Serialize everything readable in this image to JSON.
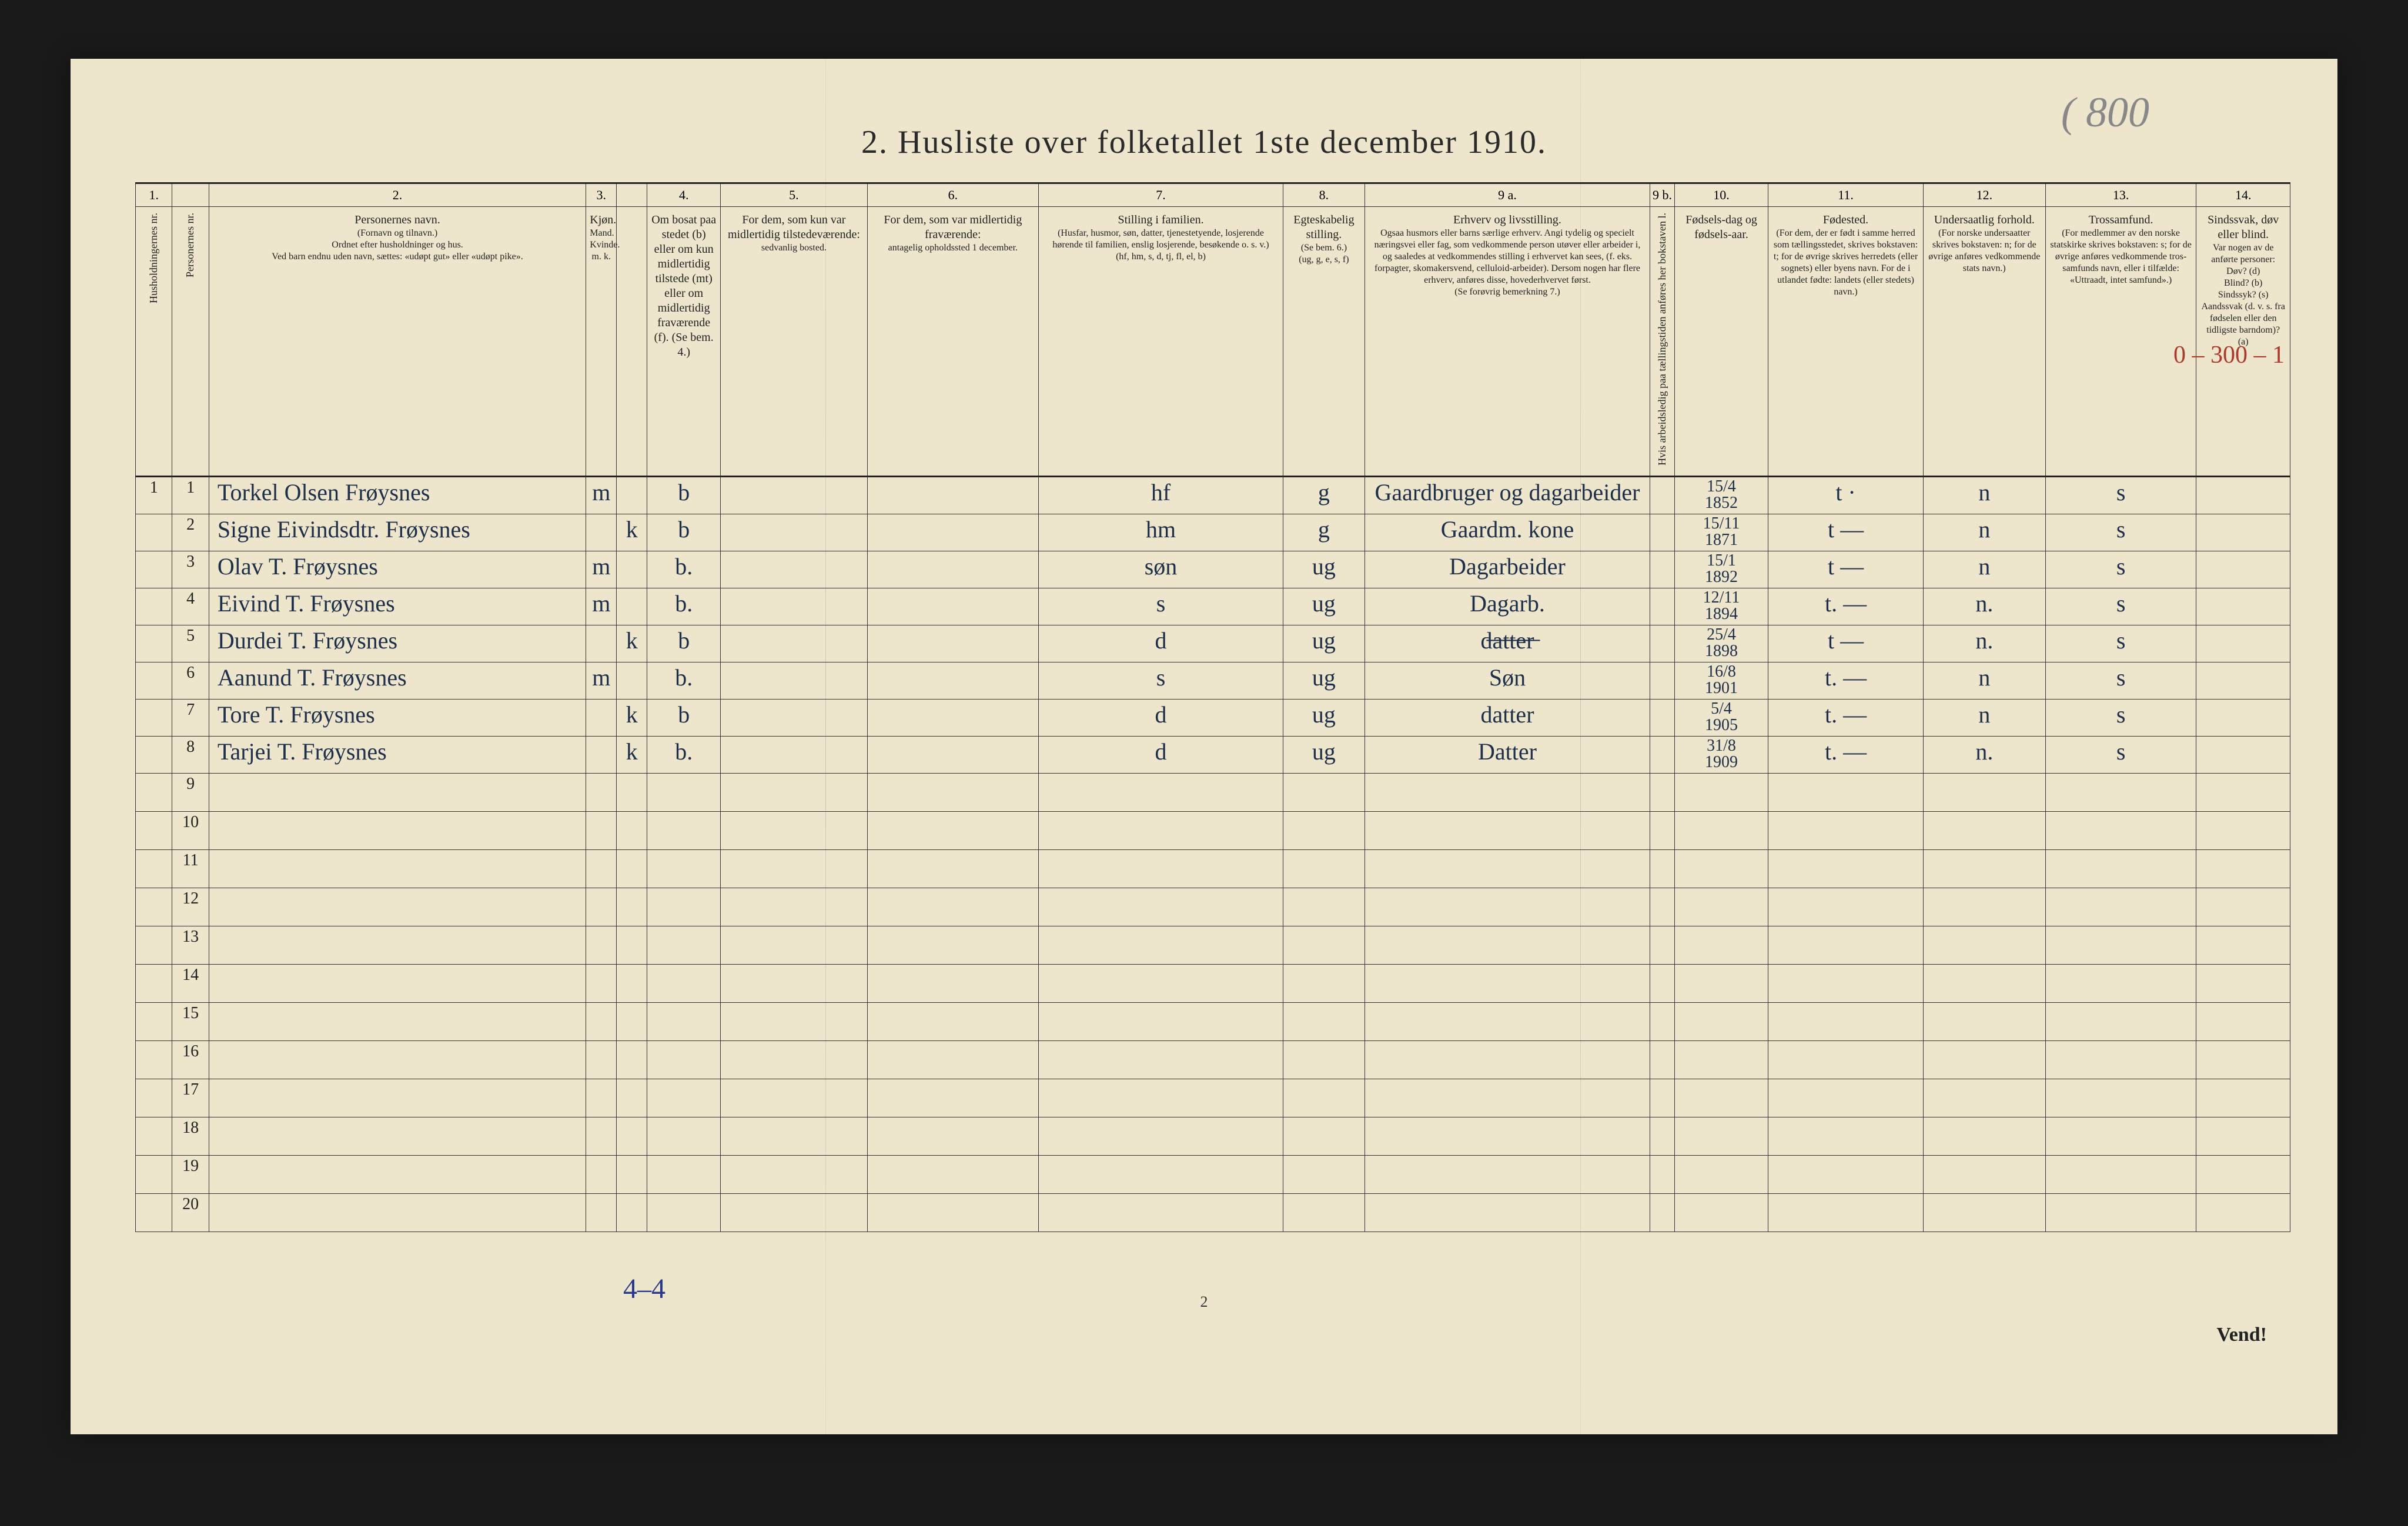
{
  "document": {
    "title": "2.  Husliste over folketallet 1ste december 1910.",
    "pencil_note_top": "( 800",
    "page_number": "2",
    "vend": "Vend!",
    "footer_tally": "4–4",
    "red_side_note": "0 – 300 – 1",
    "background_color": "#ede5cc",
    "ink_color": "#1e2f4a"
  },
  "columns": {
    "widths_pct": [
      1.8,
      1.8,
      18.5,
      1.5,
      1.5,
      3.6,
      7.2,
      8.4,
      12.0,
      4.0,
      14.0,
      1.2,
      4.6,
      7.6,
      6.0,
      7.4,
      4.6
    ],
    "numbers": [
      "1.",
      "",
      "2.",
      "3.",
      "",
      "4.",
      "5.",
      "6.",
      "7.",
      "8.",
      "9 a.",
      "9 b.",
      "10.",
      "11.",
      "12.",
      "13.",
      "14."
    ],
    "headers": [
      "Husholdningernes nr.",
      "Personernes nr.",
      "Personernes navn.\n(Fornavn og tilnavn.)\nOrdnet efter husholdninger og hus.\nVed barn endnu uden navn, sættes: «udøpt gut» eller «udøpt pike».",
      "Kjøn.\nMand. Kvinde.\nm.  k.",
      "",
      "Om bosat paa stedet (b) eller om kun midlertidig tilstede (mt) eller om midlertidig fraværende (f). (Se bem. 4.)",
      "For dem, som kun var midlertidig tilstedeværende:\nsedvanlig bosted.",
      "For dem, som var midlertidig fraværende:\nantagelig opholdssted 1 december.",
      "Stilling i familien.\n(Husfar, husmor, søn, datter, tjenestetyende, losjerende hørende til familien, enslig losjerende, besøkende o. s. v.)\n(hf, hm, s, d, tj, fl, el, b)",
      "Egteskabelig stilling.\n(Se bem. 6.)\n(ug, g, e, s, f)",
      "Erhverv og livsstilling.\nOgsaa husmors eller barns særlige erhverv. Angi tydelig og specielt næringsvei eller fag, som vedkommende person utøver eller arbeider i, og saaledes at vedkommendes stilling i erhvervet kan sees, (f. eks. forpagter, skomakersvend, celluloid-arbeider). Dersom nogen har flere erhverv, anføres disse, hovederhvervet først.\n(Se forøvrig bemerkning 7.)",
      "Hvis arbeidsledig paa tællingstiden anføres her bokstaven l.",
      "Fødsels-dag og fødsels-aar.",
      "Fødested.\n(For dem, der er født i samme herred som tællingsstedet, skrives bokstaven: t; for de øvrige skrives herredets (eller sognets) eller byens navn. For de i utlandet fødte: landets (eller stedets) navn.)",
      "Undersaatlig forhold.\n(For norske undersaatter skrives bokstaven: n; for de øvrige anføres vedkommende stats navn.)",
      "Trossamfund.\n(For medlemmer av den norske statskirke skrives bokstaven: s; for de øvrige anføres vedkommende tros-samfunds navn, eller i tilfælde: «Uttraadt, intet samfund».)",
      "Sindssvak, døv eller blind.\nVar nogen av de anførte personer:\nDøv? (d)\nBlind? (b)\nSindssyk? (s)\nAandssvak (d. v. s. fra fødselen eller den tidligste barndom)? (a)"
    ]
  },
  "rows": [
    {
      "hh": "1",
      "pn": "1",
      "name": "Torkel Olsen Frøysnes",
      "m": "m",
      "k": "",
      "res": "b",
      "away": "",
      "absent": "",
      "fam": "hf",
      "mar": "g",
      "occ": "Gaardbruger og dagarbeider",
      "l": "",
      "dob": "15/4 1852",
      "birthpl": "t  ·",
      "nat": "n",
      "rel": "s",
      "dis": ""
    },
    {
      "hh": "",
      "pn": "2",
      "name": "Signe Eivindsdtr. Frøysnes",
      "m": "",
      "k": "k",
      "res": "b",
      "away": "",
      "absent": "",
      "fam": "hm",
      "mar": "g",
      "occ": "Gaardm. kone",
      "l": "",
      "dob": "15/11 1871",
      "birthpl": "t  —",
      "nat": "n",
      "rel": "s",
      "dis": ""
    },
    {
      "hh": "",
      "pn": "3",
      "name": "Olav T. Frøysnes",
      "m": "m",
      "k": "",
      "res": "b.",
      "away": "",
      "absent": "",
      "fam": "søn",
      "mar": "ug",
      "occ": "Dagarbeider",
      "l": "",
      "dob": "15/1 1892",
      "birthpl": "t  —",
      "nat": "n",
      "rel": "s",
      "dis": ""
    },
    {
      "hh": "",
      "pn": "4",
      "name": "Eivind T. Frøysnes",
      "m": "m",
      "k": "",
      "res": "b.",
      "away": "",
      "absent": "",
      "fam": "s",
      "mar": "ug",
      "occ": "Dagarb.",
      "l": "",
      "dob": "12/11 1894",
      "birthpl": "t.  —",
      "nat": "n.",
      "rel": "s",
      "dis": ""
    },
    {
      "hh": "",
      "pn": "5",
      "name": "Durdei T. Frøysnes",
      "m": "",
      "k": "k",
      "res": "b",
      "away": "",
      "absent": "",
      "fam": "d",
      "mar": "ug",
      "occ": "d̶a̶t̶t̶e̶r̶",
      "l": "",
      "dob": "25/4 1898",
      "birthpl": "t  —",
      "nat": "n.",
      "rel": "s",
      "dis": ""
    },
    {
      "hh": "",
      "pn": "6",
      "name": "Aanund T. Frøysnes",
      "m": "m",
      "k": "",
      "res": "b.",
      "away": "",
      "absent": "",
      "fam": "s",
      "mar": "ug",
      "occ": "Søn",
      "l": "",
      "dob": "16/8 1901",
      "birthpl": "t.  —",
      "nat": "n",
      "rel": "s",
      "dis": ""
    },
    {
      "hh": "",
      "pn": "7",
      "name": "Tore T. Frøysnes",
      "m": "",
      "k": "k",
      "res": "b",
      "away": "",
      "absent": "",
      "fam": "d",
      "mar": "ug",
      "occ": "datter",
      "l": "",
      "dob": "5/4 1905",
      "birthpl": "t.  —",
      "nat": "n",
      "rel": "s",
      "dis": ""
    },
    {
      "hh": "",
      "pn": "8",
      "name": "Tarjei T. Frøysnes",
      "m": "",
      "k": "k",
      "res": "b.",
      "away": "",
      "absent": "",
      "fam": "d",
      "mar": "ug",
      "occ": "Datter",
      "l": "",
      "dob": "31/8 1909",
      "birthpl": "t.  —",
      "nat": "n.",
      "rel": "s",
      "dis": ""
    }
  ],
  "blank_rows": {
    "start": 9,
    "end": 20
  }
}
